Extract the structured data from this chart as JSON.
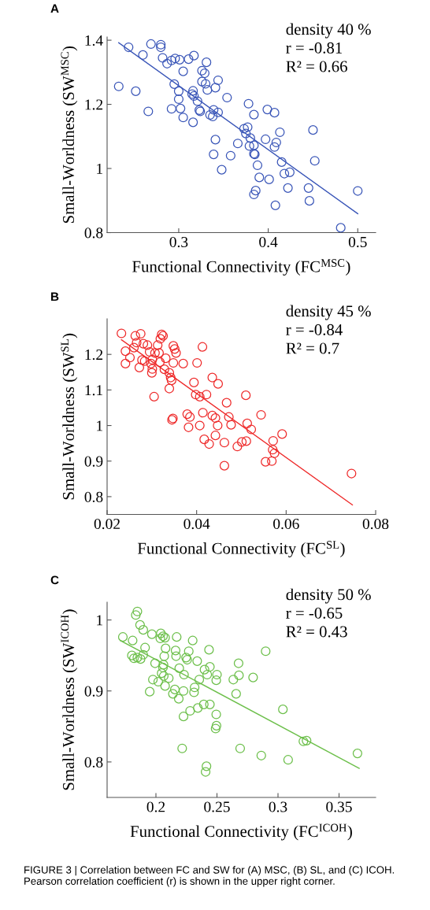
{
  "chart_data": [
    {
      "type": "scatter",
      "xlabel": "Functional Connectivity (FC$^{MSC}$)",
      "ylabel": "Small-Worldness (SW$^{MSC}$)",
      "annotations": [
        "A",
        "density 40 %",
        "r = -0.81",
        "R² = 0.66"
      ],
      "xlim": [
        0.22,
        0.52
      ],
      "ylim": [
        0.8,
        1.41
      ],
      "xticks": [
        0.3,
        0.4,
        0.5
      ],
      "yticks": [
        0.8,
        1,
        1.2,
        1.4
      ],
      "grid": false,
      "series": [
        {
          "marker": "circle",
          "color": "#3a56b8",
          "x": [
            0.244,
            0.269,
            0.28,
            0.28,
            0.26,
            0.282,
            0.287,
            0.292,
            0.296,
            0.301,
            0.311,
            0.317,
            0.331,
            0.326,
            0.329,
            0.305,
            0.344,
            0.326,
            0.33,
            0.332,
            0.341,
            0.233,
            0.252,
            0.295,
            0.3,
            0.316,
            0.315,
            0.317,
            0.3,
            0.321,
            0.354,
            0.378,
            0.266,
            0.292,
            0.302,
            0.323,
            0.324,
            0.339,
            0.335,
            0.338,
            0.344,
            0.384,
            0.399,
            0.407,
            0.305,
            0.316,
            0.373,
            0.377,
            0.375,
            0.38,
            0.397,
            0.413,
            0.45,
            0.341,
            0.366,
            0.379,
            0.384,
            0.409,
            0.407,
            0.339,
            0.358,
            0.384,
            0.385,
            0.415,
            0.452,
            0.388,
            0.348,
            0.39,
            0.401,
            0.418,
            0.424,
            0.422,
            0.445,
            0.386,
            0.384,
            0.5,
            0.446,
            0.408,
            0.481
          ],
          "values": [
            1.378,
            1.388,
            1.386,
            1.378,
            1.354,
            1.345,
            1.327,
            1.337,
            1.343,
            1.339,
            1.341,
            1.352,
            1.331,
            1.305,
            1.297,
            1.303,
            1.275,
            1.271,
            1.264,
            1.245,
            1.252,
            1.256,
            1.241,
            1.263,
            1.241,
            1.242,
            1.232,
            1.226,
            1.216,
            1.21,
            1.221,
            1.202,
            1.178,
            1.186,
            1.187,
            1.182,
            1.178,
            1.183,
            1.167,
            1.162,
            1.175,
            1.168,
            1.184,
            1.174,
            1.159,
            1.144,
            1.124,
            1.129,
            1.109,
            1.095,
            1.091,
            1.113,
            1.12,
            1.09,
            1.078,
            1.07,
            1.072,
            1.081,
            1.067,
            1.044,
            1.04,
            1.046,
            1.044,
            1.02,
            1.024,
            1.01,
            0.996,
            0.972,
            0.966,
            0.984,
            0.988,
            0.939,
            0.939,
            0.931,
            0.919,
            0.93,
            0.899,
            0.885,
            0.815
          ]
        },
        {
          "type": "line",
          "marker": "none",
          "color": "#3a56b8",
          "x": [
            0.233,
            0.5
          ],
          "values": [
            1.392,
            0.859
          ]
        }
      ]
    },
    {
      "type": "scatter",
      "xlabel": "Functional Connectivity (FC$^{SL}$)",
      "ylabel": "Small-Worldness (SW$^{SL}$)",
      "annotations": [
        "B",
        "density 45 %",
        "r = -0.84",
        "R² = 0.7"
      ],
      "xlim": [
        0.02,
        0.08
      ],
      "ylim": [
        0.75,
        1.3
      ],
      "xticks": [
        0.02,
        0.04,
        0.06,
        0.08
      ],
      "yticks": [
        0.8,
        0.9,
        1,
        1.1,
        1.2
      ],
      "grid": false,
      "series": [
        {
          "marker": "circle",
          "color": "#ee2a2a",
          "x": [
            0.0232,
            0.0263,
            0.0275,
            0.0322,
            0.0325,
            0.0319,
            0.0266,
            0.0281,
            0.029,
            0.0313,
            0.0348,
            0.0351,
            0.0413,
            0.0241,
            0.026,
            0.0295,
            0.0307,
            0.0316,
            0.0354,
            0.0251,
            0.0278,
            0.0284,
            0.0301,
            0.0331,
            0.0241,
            0.0298,
            0.0318,
            0.0348,
            0.037,
            0.0401,
            0.0272,
            0.0301,
            0.03,
            0.0328,
            0.0339,
            0.0342,
            0.0344,
            0.0435,
            0.0448,
            0.0394,
            0.0339,
            0.0305,
            0.0398,
            0.0407,
            0.0422,
            0.0467,
            0.051,
            0.0379,
            0.0385,
            0.0414,
            0.0435,
            0.0442,
            0.0472,
            0.0544,
            0.0347,
            0.0345,
            0.0382,
            0.0407,
            0.0447,
            0.0477,
            0.0513,
            0.0522,
            0.0591,
            0.0417,
            0.0442,
            0.0428,
            0.0462,
            0.0491,
            0.0501,
            0.0511,
            0.0571,
            0.057,
            0.0574,
            0.0554,
            0.0568,
            0.0462,
            0.0746
          ],
          "values": [
            1.259,
            1.252,
            1.258,
            1.256,
            1.252,
            1.244,
            1.233,
            1.23,
            1.226,
            1.226,
            1.224,
            1.215,
            1.221,
            1.209,
            1.219,
            1.207,
            1.204,
            1.204,
            1.204,
            1.191,
            1.184,
            1.181,
            1.185,
            1.189,
            1.174,
            1.174,
            1.178,
            1.176,
            1.174,
            1.176,
            1.163,
            1.159,
            1.148,
            1.158,
            1.148,
            1.135,
            1.127,
            1.135,
            1.117,
            1.121,
            1.104,
            1.081,
            1.087,
            1.081,
            1.087,
            1.064,
            1.085,
            1.032,
            1.024,
            1.036,
            1.028,
            1.021,
            1.024,
            1.03,
            1.02,
            1.016,
            0.995,
            1.0,
            1.0,
            1.002,
            1.006,
            0.989,
            0.976,
            0.961,
            0.972,
            0.948,
            0.952,
            0.941,
            0.954,
            0.956,
            0.957,
            0.932,
            0.922,
            0.898,
            0.9,
            0.887,
            0.865
          ]
        },
        {
          "type": "line",
          "marker": "none",
          "color": "#ee2a2a",
          "x": [
            0.0232,
            0.0748
          ],
          "values": [
            1.241,
            0.777
          ]
        }
      ]
    },
    {
      "type": "scatter",
      "xlabel": "Functional Connectivity (FC$^{ICOH}$)",
      "ylabel": "Small-Worldness (SW$^{ICOH}$)",
      "annotations": [
        "C",
        "density 50 %",
        "r = -0.65",
        "R² = 0.43",
        "FIGURE 3 | Correlation between FC and SW for (A) MSC, (B) SL, and (C) ICOH. Pearson correlation coefficient (r) is shown in the upper right corner."
      ],
      "xlim": [
        0.16,
        0.38
      ],
      "ylim": [
        0.75,
        1.025
      ],
      "xticks": [
        0.2,
        0.25,
        0.3,
        0.35
      ],
      "yticks": [
        0.8,
        0.9,
        1
      ],
      "grid": false,
      "series": [
        {
          "marker": "circle",
          "color": "#6cbf4a",
          "x": [
            0.1835,
            0.1848,
            0.187,
            0.1896,
            0.1729,
            0.1809,
            0.1967,
            0.204,
            0.2058,
            0.2036,
            0.2075,
            0.217,
            0.2301,
            0.1911,
            0.2079,
            0.2161,
            0.2269,
            0.2435,
            0.2899,
            0.1803,
            0.182,
            0.1848,
            0.1874,
            0.1896,
            0.2068,
            0.2165,
            0.2247,
            0.2256,
            0.2338,
            0.1993,
            0.2062,
            0.2058,
            0.2191,
            0.2398,
            0.2442,
            0.2677,
            0.2047,
            0.223,
            0.242,
            0.25,
            0.2064,
            0.2105,
            0.1975,
            0.2019,
            0.2355,
            0.2494,
            0.2634,
            0.268,
            0.2796,
            0.2075,
            0.2317,
            0.2155,
            0.1949,
            0.2139,
            0.2226,
            0.2312,
            0.2657,
            0.2187,
            0.2392,
            0.2442,
            0.2343,
            0.228,
            0.2226,
            0.2494,
            0.304,
            0.2496,
            0.2489,
            0.3208,
            0.3234,
            0.2215,
            0.269,
            0.2863,
            0.3083,
            0.3651,
            0.2414,
            0.2407
          ],
          "values": [
            1.007,
            1.012,
            0.993,
            0.986,
            0.976,
            0.971,
            0.98,
            0.981,
            0.977,
            0.974,
            0.975,
            0.976,
            0.971,
            0.961,
            0.96,
            0.957,
            0.956,
            0.958,
            0.956,
            0.95,
            0.946,
            0.947,
            0.945,
            0.951,
            0.949,
            0.949,
            0.947,
            0.944,
            0.942,
            0.939,
            0.937,
            0.933,
            0.932,
            0.93,
            0.934,
            0.939,
            0.925,
            0.923,
            0.923,
            0.923,
            0.921,
            0.918,
            0.916,
            0.913,
            0.916,
            0.915,
            0.916,
            0.922,
            0.919,
            0.907,
            0.905,
            0.902,
            0.899,
            0.896,
            0.9,
            0.898,
            0.896,
            0.889,
            0.881,
            0.881,
            0.876,
            0.872,
            0.864,
            0.867,
            0.874,
            0.851,
            0.847,
            0.829,
            0.83,
            0.819,
            0.819,
            0.809,
            0.803,
            0.812,
            0.794,
            0.786
          ]
        },
        {
          "type": "line",
          "marker": "none",
          "color": "#6cbf4a",
          "x": [
            0.1708,
            0.3665
          ],
          "values": [
            0.971,
            0.791
          ]
        }
      ]
    }
  ]
}
